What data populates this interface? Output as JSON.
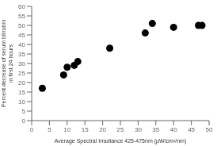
{
  "chart_data": {
    "type": "scatter",
    "x": [
      3,
      9,
      10,
      12,
      13,
      22,
      32,
      34,
      40,
      47,
      48
    ],
    "y": [
      17,
      24,
      28,
      29,
      31,
      38,
      46,
      51,
      49,
      50,
      50
    ],
    "xlabel": "Average Spectral Irradiance 425-475nm (μW/cm²/nm)",
    "ylabel": "Percent decrease of serum bilirubin\nin first 24 hours",
    "xlim": [
      0,
      50
    ],
    "ylim": [
      0,
      60
    ],
    "xticks": [
      0,
      5,
      10,
      15,
      20,
      25,
      30,
      35,
      40,
      45,
      50
    ],
    "yticks": [
      0,
      5,
      10,
      15,
      20,
      25,
      30,
      35,
      40,
      45,
      50,
      55,
      60
    ],
    "color": "black",
    "grid": false
  }
}
